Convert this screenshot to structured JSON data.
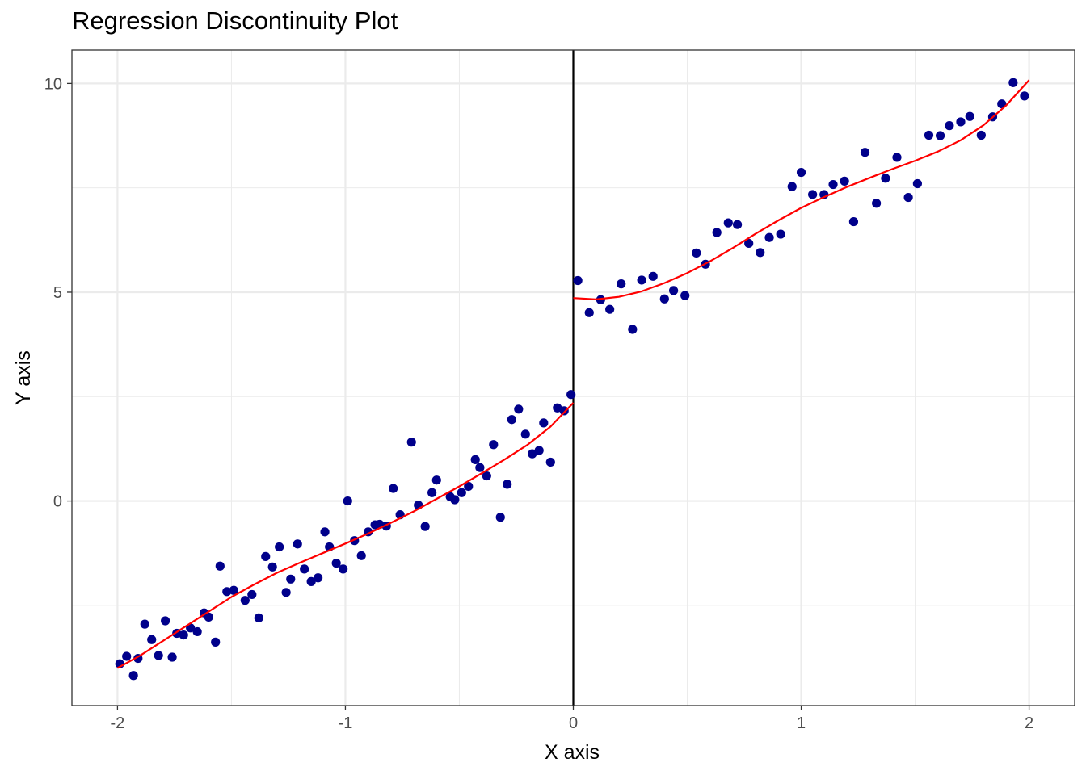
{
  "chart_data": {
    "type": "scatter",
    "title": "Regression Discontinuity Plot",
    "xlabel": "X axis",
    "ylabel": "Y axis",
    "xlim": [
      -2.2,
      2.2
    ],
    "ylim": [
      -4.9,
      10.8
    ],
    "x_ticks": [
      -2,
      -1,
      0,
      1,
      2
    ],
    "x_tick_labels": [
      "-2",
      "-1",
      "0",
      "1",
      "2"
    ],
    "y_ticks": [
      0,
      5,
      10
    ],
    "y_tick_labels": [
      "0",
      "5",
      "10"
    ],
    "y_minor_gridlines": [
      -2.5,
      2.5,
      7.5
    ],
    "x_minor_gridlines": [
      -1.5,
      -0.5,
      0.5,
      1.5
    ],
    "grid": true,
    "legend": "none",
    "cutoff": 0,
    "colors": {
      "points": "#00008B",
      "fit": "#FF0000",
      "cutoff_line": "#000000",
      "grid": "#EBEBEB"
    },
    "series": [
      {
        "type": "scatter",
        "points": [
          [
            -1.99,
            -3.9
          ],
          [
            -1.96,
            -3.72
          ],
          [
            -1.93,
            -4.18
          ],
          [
            -1.91,
            -3.77
          ],
          [
            -1.88,
            -2.95
          ],
          [
            -1.85,
            -3.32
          ],
          [
            -1.82,
            -3.7
          ],
          [
            -1.79,
            -2.87
          ],
          [
            -1.76,
            -3.74
          ],
          [
            -1.74,
            -3.17
          ],
          [
            -1.71,
            -3.21
          ],
          [
            -1.68,
            -3.04
          ],
          [
            -1.65,
            -3.13
          ],
          [
            -1.62,
            -2.68
          ],
          [
            -1.6,
            -2.78
          ],
          [
            -1.57,
            -3.38
          ],
          [
            -1.55,
            -1.56
          ],
          [
            -1.52,
            -2.17
          ],
          [
            -1.49,
            -2.14
          ],
          [
            -1.44,
            -2.38
          ],
          [
            -1.41,
            -2.24
          ],
          [
            -1.38,
            -2.8
          ],
          [
            -1.35,
            -1.33
          ],
          [
            -1.32,
            -1.58
          ],
          [
            -1.29,
            -1.1
          ],
          [
            -1.26,
            -2.19
          ],
          [
            -1.24,
            -1.87
          ],
          [
            -1.21,
            -1.03
          ],
          [
            -1.18,
            -1.63
          ],
          [
            -1.15,
            -1.93
          ],
          [
            -1.12,
            -1.84
          ],
          [
            -1.09,
            -0.74
          ],
          [
            -1.07,
            -1.1
          ],
          [
            -1.04,
            -1.49
          ],
          [
            -1.01,
            -1.63
          ],
          [
            -0.99,
            0.0
          ],
          [
            -0.96,
            -0.95
          ],
          [
            -0.93,
            -1.31
          ],
          [
            -0.9,
            -0.74
          ],
          [
            -0.87,
            -0.57
          ],
          [
            -0.85,
            -0.56
          ],
          [
            -0.82,
            -0.6
          ],
          [
            -0.79,
            0.3
          ],
          [
            -0.76,
            -0.33
          ],
          [
            -0.71,
            1.41
          ],
          [
            -0.68,
            -0.1
          ],
          [
            -0.65,
            -0.61
          ],
          [
            -0.62,
            0.2
          ],
          [
            -0.6,
            0.5
          ],
          [
            -0.54,
            0.1
          ],
          [
            -0.52,
            0.03
          ],
          [
            -0.49,
            0.2
          ],
          [
            -0.46,
            0.35
          ],
          [
            -0.43,
            0.99
          ],
          [
            -0.41,
            0.8
          ],
          [
            -0.38,
            0.6
          ],
          [
            -0.35,
            1.35
          ],
          [
            -0.32,
            -0.39
          ],
          [
            -0.29,
            0.4
          ],
          [
            -0.27,
            1.95
          ],
          [
            -0.24,
            2.2
          ],
          [
            -0.21,
            1.6
          ],
          [
            -0.18,
            1.13
          ],
          [
            -0.15,
            1.21
          ],
          [
            -0.13,
            1.87
          ],
          [
            -0.1,
            0.93
          ],
          [
            -0.07,
            2.23
          ],
          [
            -0.04,
            2.16
          ],
          [
            -0.01,
            2.55
          ],
          [
            0.02,
            5.28
          ],
          [
            0.07,
            4.51
          ],
          [
            0.12,
            4.82
          ],
          [
            0.16,
            4.59
          ],
          [
            0.21,
            5.2
          ],
          [
            0.26,
            4.11
          ],
          [
            0.3,
            5.29
          ],
          [
            0.35,
            5.38
          ],
          [
            0.4,
            4.84
          ],
          [
            0.44,
            5.04
          ],
          [
            0.49,
            4.92
          ],
          [
            0.54,
            5.94
          ],
          [
            0.58,
            5.67
          ],
          [
            0.63,
            6.43
          ],
          [
            0.68,
            6.66
          ],
          [
            0.72,
            6.62
          ],
          [
            0.77,
            6.17
          ],
          [
            0.82,
            5.95
          ],
          [
            0.86,
            6.31
          ],
          [
            0.91,
            6.39
          ],
          [
            0.96,
            7.53
          ],
          [
            1.0,
            7.87
          ],
          [
            1.05,
            7.34
          ],
          [
            1.1,
            7.34
          ],
          [
            1.14,
            7.58
          ],
          [
            1.19,
            7.66
          ],
          [
            1.23,
            6.69
          ],
          [
            1.28,
            8.35
          ],
          [
            1.33,
            7.13
          ],
          [
            1.37,
            7.73
          ],
          [
            1.42,
            8.23
          ],
          [
            1.47,
            7.27
          ],
          [
            1.51,
            7.6
          ],
          [
            1.56,
            8.76
          ],
          [
            1.61,
            8.75
          ],
          [
            1.65,
            8.99
          ],
          [
            1.7,
            9.08
          ],
          [
            1.74,
            9.21
          ],
          [
            1.79,
            8.76
          ],
          [
            1.84,
            9.2
          ],
          [
            1.88,
            9.51
          ],
          [
            1.93,
            10.02
          ],
          [
            1.98,
            9.7
          ]
        ]
      },
      {
        "type": "line",
        "segments": [
          [
            [
              -2.0,
              -4.0
            ],
            [
              -1.9,
              -3.7
            ],
            [
              -1.8,
              -3.35
            ],
            [
              -1.7,
              -3.0
            ],
            [
              -1.6,
              -2.65
            ],
            [
              -1.5,
              -2.3
            ],
            [
              -1.4,
              -2.0
            ],
            [
              -1.3,
              -1.72
            ],
            [
              -1.2,
              -1.48
            ],
            [
              -1.1,
              -1.25
            ],
            [
              -1.0,
              -1.02
            ],
            [
              -0.9,
              -0.78
            ],
            [
              -0.8,
              -0.52
            ],
            [
              -0.7,
              -0.25
            ],
            [
              -0.6,
              0.05
            ],
            [
              -0.5,
              0.35
            ],
            [
              -0.4,
              0.67
            ],
            [
              -0.3,
              1.0
            ],
            [
              -0.2,
              1.35
            ],
            [
              -0.1,
              1.78
            ],
            [
              0.0,
              2.35
            ]
          ],
          [
            [
              0.0,
              4.86
            ],
            [
              0.1,
              4.83
            ],
            [
              0.2,
              4.89
            ],
            [
              0.3,
              5.02
            ],
            [
              0.4,
              5.22
            ],
            [
              0.5,
              5.46
            ],
            [
              0.6,
              5.74
            ],
            [
              0.7,
              6.06
            ],
            [
              0.8,
              6.4
            ],
            [
              0.9,
              6.72
            ],
            [
              1.0,
              7.02
            ],
            [
              1.1,
              7.28
            ],
            [
              1.2,
              7.52
            ],
            [
              1.3,
              7.74
            ],
            [
              1.4,
              7.95
            ],
            [
              1.5,
              8.15
            ],
            [
              1.6,
              8.37
            ],
            [
              1.7,
              8.64
            ],
            [
              1.8,
              9.0
            ],
            [
              1.9,
              9.48
            ],
            [
              2.0,
              10.08
            ]
          ]
        ]
      }
    ]
  }
}
